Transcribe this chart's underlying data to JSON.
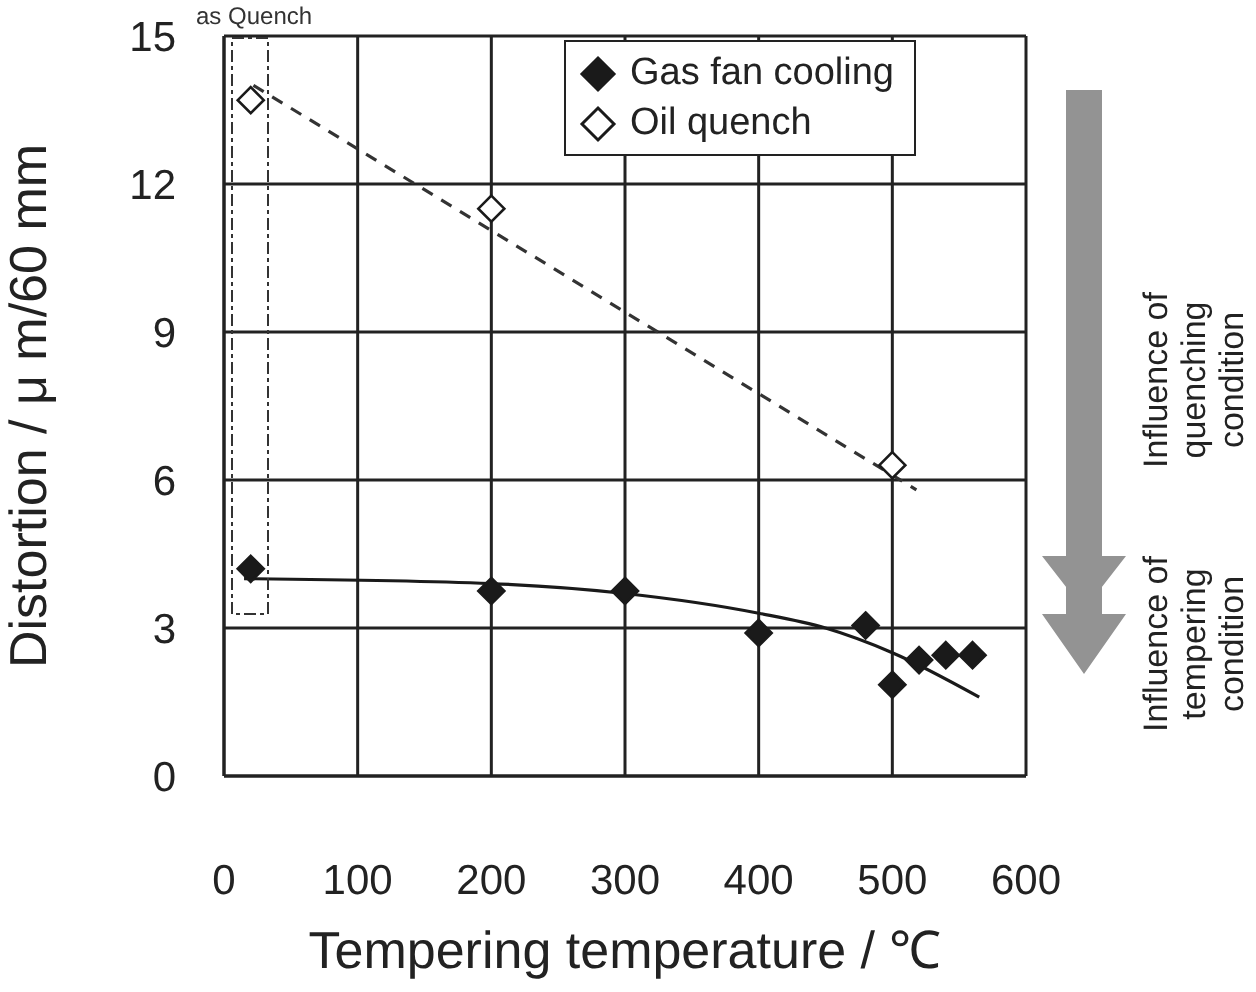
{
  "chart_data": {
    "type": "scatter",
    "xlabel": "Tempering temperature / ℃",
    "ylabel": "Distortion / μ m/60 mm",
    "xlim": [
      0,
      600
    ],
    "xticks": [
      0,
      100,
      200,
      300,
      400,
      500,
      600
    ],
    "ylim": [
      0,
      15
    ],
    "yticks": [
      0,
      3,
      6,
      9,
      12,
      15
    ],
    "grid": true,
    "legend": "top right",
    "marker": "diamond",
    "series": [
      {
        "name": "Gas fan cooling",
        "color": "#1a1a1a",
        "x": [
          20,
          200,
          300,
          400,
          480,
          500,
          520,
          540,
          560
        ],
        "values": [
          4.2,
          3.75,
          3.75,
          2.9,
          3.05,
          1.85,
          2.35,
          2.45,
          2.45
        ]
      },
      {
        "name": "Oil quench",
        "color": "#ffffff",
        "x": [
          20,
          200,
          500
        ],
        "values": [
          13.7,
          11.5,
          6.3
        ]
      },
      {
        "type": "line",
        "color": "#1a1a1a",
        "marker": "none",
        "line_style": "solid",
        "x": [
          15,
          200,
          300,
          400,
          450,
          500,
          565
        ],
        "values": [
          4.0,
          3.9,
          3.7,
          3.3,
          3.0,
          2.5,
          1.6
        ]
      },
      {
        "type": "line",
        "color": "#333333",
        "marker": "none",
        "line_style": "dashed",
        "x": [
          22,
          518
        ],
        "values": [
          14.0,
          5.8
        ]
      }
    ],
    "annotations": [
      "as Quench",
      "Influence of quenching condition",
      "Influence of tempering condition"
    ]
  }
}
